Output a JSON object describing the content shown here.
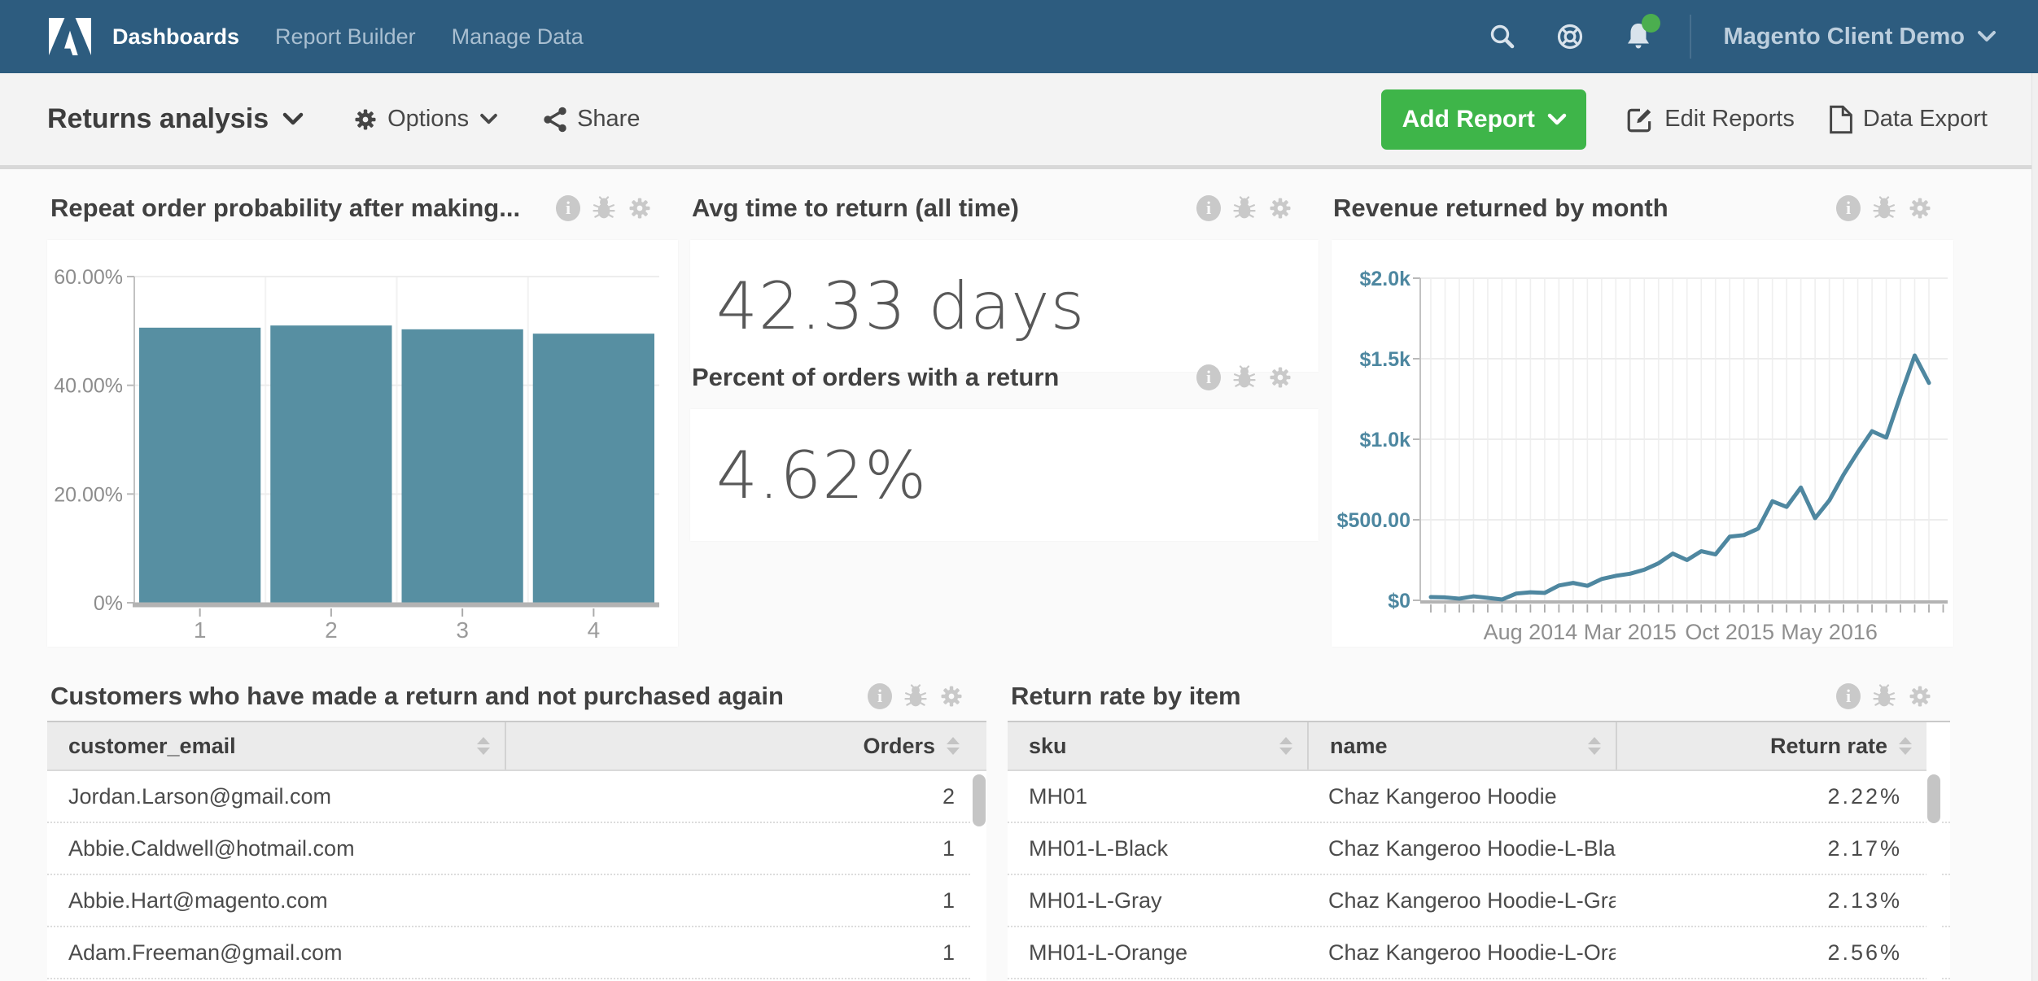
{
  "navbar": {
    "brand": "Adobe",
    "items": [
      {
        "label": "Dashboards",
        "active": true
      },
      {
        "label": "Report Builder",
        "active": false
      },
      {
        "label": "Manage Data",
        "active": false
      }
    ],
    "account_label": "Magento Client Demo",
    "notification_dot": true
  },
  "toolbar": {
    "dashboard_title": "Returns analysis",
    "options_label": "Options",
    "share_label": "Share",
    "add_report_label": "Add Report",
    "edit_reports_label": "Edit Reports",
    "data_export_label": "Data Export"
  },
  "colors": {
    "navbar_bg": "#2d5c7f",
    "accent_green": "#3eb549",
    "chart_teal": "#578fa2",
    "line_teal": "#4e87a0",
    "axis_label_gray": "#8d8d8d",
    "icon_gray": "#c9c9c9"
  },
  "panels": {
    "repeat_order": {
      "title": "Repeat order probability after making..."
    },
    "avg_time": {
      "title": "Avg time to return (all time)",
      "value": "42.33 days"
    },
    "percent_orders": {
      "title": "Percent of orders with a return",
      "value": "4.62%"
    },
    "revenue_returned": {
      "title": "Revenue returned by month"
    },
    "customers": {
      "title": "Customers who have made a return and not purchased again",
      "columns": [
        "customer_email",
        "Orders"
      ],
      "rows": [
        {
          "email": "Jordan.Larson@gmail.com",
          "orders": "2"
        },
        {
          "email": "Abbie.Caldwell@hotmail.com",
          "orders": "1"
        },
        {
          "email": "Abbie.Hart@magento.com",
          "orders": "1"
        },
        {
          "email": "Adam.Freeman@gmail.com",
          "orders": "1"
        }
      ]
    },
    "return_rate": {
      "title": "Return rate by item",
      "columns": [
        "sku",
        "name",
        "Return rate"
      ],
      "rows": [
        {
          "sku": "MH01",
          "name": "Chaz Kangeroo Hoodie",
          "rate": "2.22%"
        },
        {
          "sku": "MH01-L-Black",
          "name": "Chaz Kangeroo Hoodie-L-Black",
          "rate": "2.17%"
        },
        {
          "sku": "MH01-L-Gray",
          "name": "Chaz Kangeroo Hoodie-L-Gray",
          "rate": "2.13%"
        },
        {
          "sku": "MH01-L-Orange",
          "name": "Chaz Kangeroo Hoodie-L-Orange",
          "rate": "2.56%"
        }
      ]
    }
  },
  "chart_data": [
    {
      "type": "bar",
      "title": "Repeat order probability after making...",
      "categories": [
        "1",
        "2",
        "3",
        "4"
      ],
      "values": [
        50.6,
        51.0,
        50.3,
        49.5
      ],
      "ylim": [
        0,
        60
      ],
      "yticks": [
        {
          "value": 0,
          "label": "0%"
        },
        {
          "value": 20,
          "label": "20.00%"
        },
        {
          "value": 40,
          "label": "40.00%"
        },
        {
          "value": 60,
          "label": "60.00%"
        }
      ],
      "bar_color": "#578fa2",
      "grid": true,
      "legend": false
    },
    {
      "type": "line",
      "title": "Revenue returned by month",
      "x_tick_labels": [
        "Aug 2014",
        "Mar 2015",
        "Oct 2015",
        "May 2016"
      ],
      "x_tick_indices": [
        7,
        14,
        21,
        28
      ],
      "values": [
        20,
        18,
        10,
        25,
        15,
        5,
        42,
        50,
        46,
        92,
        108,
        90,
        132,
        152,
        165,
        190,
        230,
        290,
        250,
        305,
        285,
        395,
        405,
        445,
        615,
        580,
        700,
        510,
        620,
        780,
        920,
        1050,
        1010,
        1270,
        1520,
        1350
      ],
      "ylim": [
        0,
        2000
      ],
      "yticks": [
        {
          "value": 0,
          "label": "$0"
        },
        {
          "value": 500,
          "label": "$500.00"
        },
        {
          "value": 1000,
          "label": "$1.0k"
        },
        {
          "value": 1500,
          "label": "$1.5k"
        },
        {
          "value": 2000,
          "label": "$2.0k"
        }
      ],
      "line_color": "#4e87a0",
      "grid": true,
      "legend": false
    }
  ]
}
